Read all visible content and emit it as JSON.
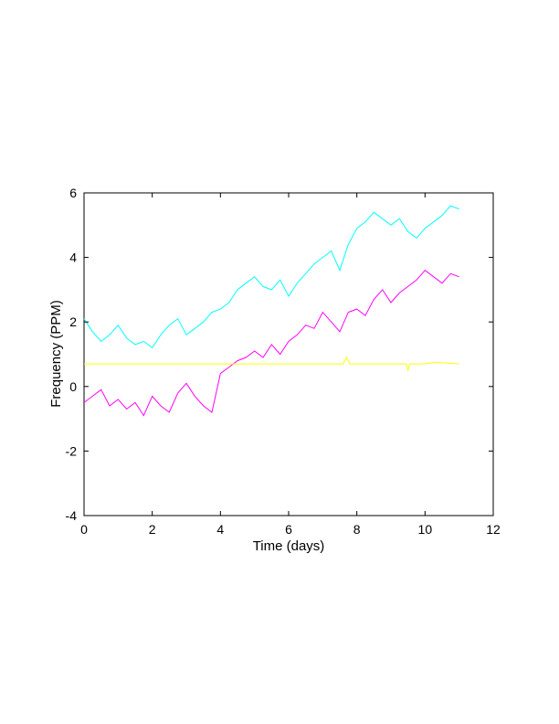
{
  "chart_data": {
    "type": "line",
    "title": "",
    "xlabel": "Time (days)",
    "ylabel": "Frequency (PPM)",
    "xlim": [
      0,
      12
    ],
    "ylim": [
      -4,
      6
    ],
    "xticks": [
      0,
      2,
      4,
      6,
      8,
      10,
      12
    ],
    "yticks": [
      -4,
      -2,
      0,
      2,
      4,
      6
    ],
    "grid": false,
    "legend": "none",
    "series": [
      {
        "color": "#00ffff",
        "x": [
          0,
          0.25,
          0.5,
          0.75,
          1.0,
          1.25,
          1.5,
          1.75,
          2.0,
          2.25,
          2.5,
          2.75,
          3.0,
          3.25,
          3.5,
          3.75,
          4.0,
          4.25,
          4.5,
          4.75,
          5.0,
          5.25,
          5.5,
          5.75,
          6.0,
          6.25,
          6.5,
          6.75,
          7.0,
          7.25,
          7.5,
          7.75,
          8.0,
          8.25,
          8.5,
          8.75,
          9.0,
          9.25,
          9.5,
          9.75,
          10.0,
          10.25,
          10.5,
          10.75,
          11.0
        ],
        "y": [
          2.1,
          1.7,
          1.4,
          1.6,
          1.9,
          1.5,
          1.3,
          1.4,
          1.2,
          1.6,
          1.9,
          2.1,
          1.6,
          1.8,
          2.0,
          2.3,
          2.4,
          2.6,
          3.0,
          3.2,
          3.4,
          3.1,
          3.0,
          3.3,
          2.8,
          3.2,
          3.5,
          3.8,
          4.0,
          4.2,
          3.6,
          4.4,
          4.9,
          5.1,
          5.4,
          5.2,
          5.0,
          5.2,
          4.8,
          4.6,
          4.9,
          5.1,
          5.3,
          5.6,
          5.5
        ]
      },
      {
        "color": "#ff00ff",
        "x": [
          0,
          0.25,
          0.5,
          0.75,
          1.0,
          1.25,
          1.5,
          1.75,
          2.0,
          2.25,
          2.5,
          2.75,
          3.0,
          3.25,
          3.5,
          3.75,
          4.0,
          4.25,
          4.5,
          4.75,
          5.0,
          5.25,
          5.5,
          5.75,
          6.0,
          6.25,
          6.5,
          6.75,
          7.0,
          7.25,
          7.5,
          7.75,
          8.0,
          8.25,
          8.5,
          8.75,
          9.0,
          9.25,
          9.5,
          9.75,
          10.0,
          10.25,
          10.5,
          10.75,
          11.0
        ],
        "y": [
          -0.5,
          -0.3,
          -0.1,
          -0.6,
          -0.4,
          -0.7,
          -0.5,
          -0.9,
          -0.3,
          -0.6,
          -0.8,
          -0.2,
          0.1,
          -0.3,
          -0.6,
          -0.8,
          0.4,
          0.6,
          0.8,
          0.9,
          1.1,
          0.9,
          1.3,
          1.0,
          1.4,
          1.6,
          1.9,
          1.8,
          2.3,
          2.0,
          1.7,
          2.3,
          2.4,
          2.2,
          2.7,
          3.0,
          2.6,
          2.9,
          3.1,
          3.3,
          3.6,
          3.4,
          3.2,
          3.5,
          3.4
        ]
      },
      {
        "color": "#ffff00",
        "x": [
          0,
          1,
          2,
          3,
          4,
          5,
          6,
          7,
          7.6,
          7.7,
          7.8,
          8,
          9,
          9.45,
          9.5,
          9.55,
          10,
          10.3,
          11.0
        ],
        "y": [
          0.7,
          0.7,
          0.7,
          0.7,
          0.7,
          0.7,
          0.7,
          0.7,
          0.7,
          0.9,
          0.7,
          0.7,
          0.7,
          0.7,
          0.5,
          0.7,
          0.7,
          0.75,
          0.7
        ]
      }
    ]
  }
}
